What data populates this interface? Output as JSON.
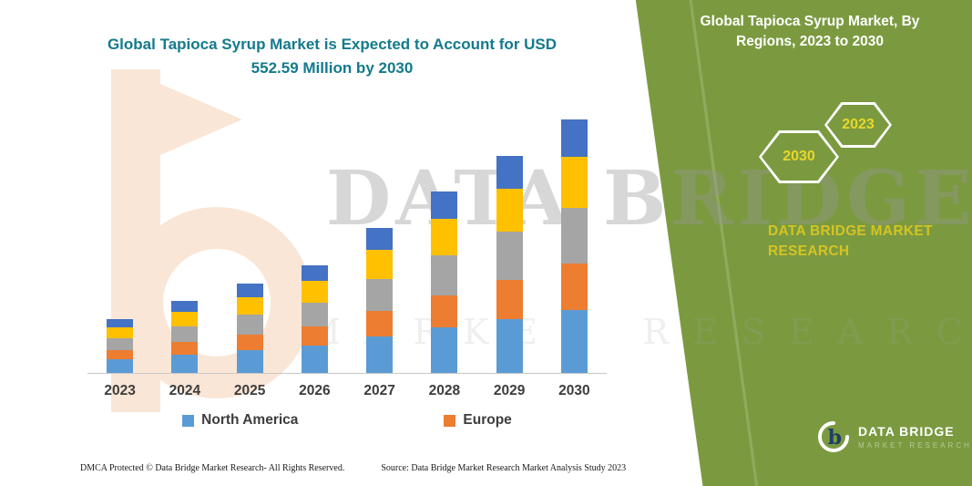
{
  "main": {
    "title": "Global Tapioca Syrup Market is Expected to Account for USD 552.59 Million by 2030"
  },
  "panel": {
    "title": "Global Tapioca Syrup Market, By Regions, 2023 to 2030",
    "hexagons": [
      "2030",
      "2023"
    ],
    "brand_text": "DATA BRIDGE MARKET RESEARCH",
    "logo_title": "DATA BRIDGE",
    "logo_subtitle": "MARKET RESEARCH",
    "colors": {
      "background": "#7b9a40",
      "year_text": "#e8d729",
      "brand_text": "#d5c324"
    }
  },
  "watermark": {
    "line1": "DATA BRIDGE",
    "line2": "MARKET RESEARCH"
  },
  "chart_data": {
    "type": "bar",
    "stacked": true,
    "title": "",
    "xlabel": "",
    "ylabel": "",
    "ylim": [
      0,
      580
    ],
    "grid": false,
    "legend_position": "bottom",
    "categories": [
      "2023",
      "2024",
      "2025",
      "2026",
      "2027",
      "2028",
      "2029",
      "2030"
    ],
    "series": [
      {
        "name": "North America",
        "color": "#5b9bd5",
        "values": [
          29,
          39,
          49,
          59,
          79,
          99,
          118,
          138
        ]
      },
      {
        "name": "Europe",
        "color": "#ed7d31",
        "values": [
          21,
          28,
          35,
          42,
          57,
          71,
          85,
          100
        ]
      },
      {
        "name": "unlabeled-gray",
        "color": "#a5a5a5",
        "values": [
          26,
          35,
          43,
          52,
          69,
          87,
          104,
          122
        ]
      },
      {
        "name": "unlabeled-yellow",
        "color": "#ffc000",
        "values": [
          23,
          31,
          39,
          47,
          63,
          79,
          94,
          110
        ]
      },
      {
        "name": "unlabeled-navy",
        "color": "#4472c4",
        "values": [
          18,
          24,
          29,
          35,
          47,
          59,
          71,
          83
        ]
      }
    ],
    "legend": [
      "North America",
      "Europe"
    ],
    "totals_note": "2030 total = 552.59 USD Million"
  },
  "footer": {
    "dmca": "DMCA Protected © Data Bridge Market Research-  All Rights Reserved.",
    "source": "Source: Data Bridge Market Research  Market Analysis Study 2023"
  }
}
